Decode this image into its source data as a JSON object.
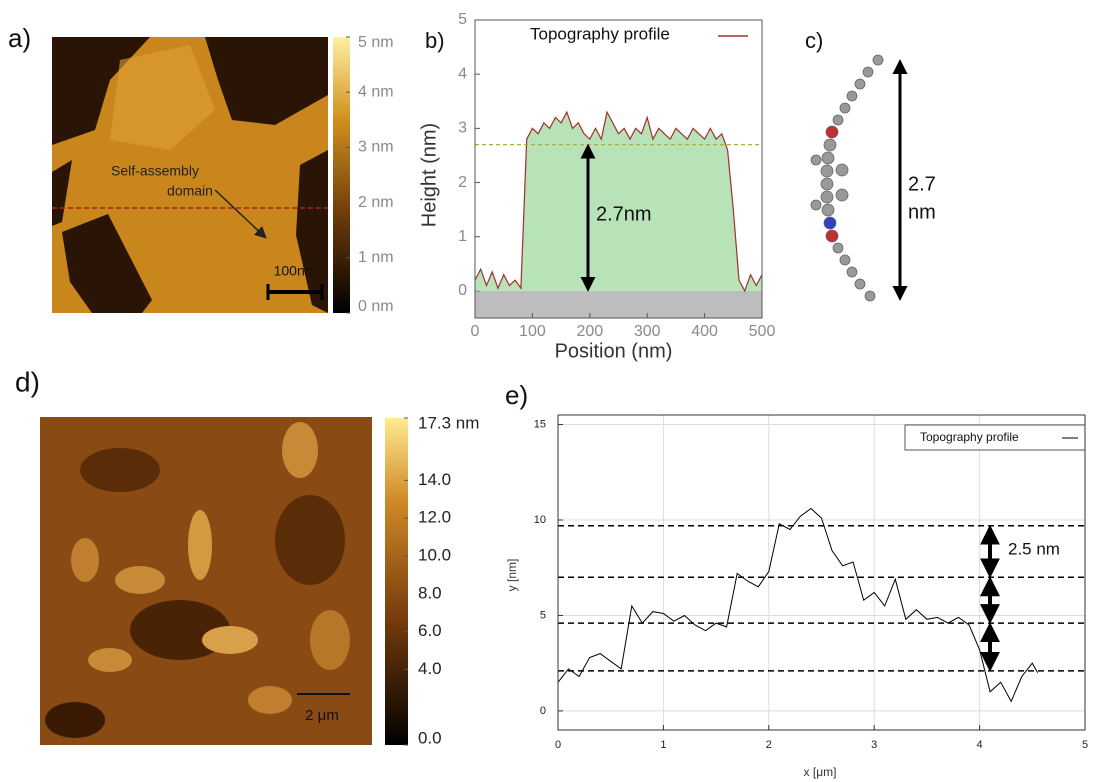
{
  "panel_labels": [
    "a)",
    "b)",
    "c)",
    "d)",
    "e)"
  ],
  "images": [
    {
      "colorbar": {
        "lim": [
          0,
          5
        ],
        "ticks": [
          {
            "value": 0,
            "label": "0 nm"
          },
          {
            "value": 1,
            "label": "1 nm"
          },
          {
            "value": 2,
            "label": "2 nm"
          },
          {
            "value": 3,
            "label": "3 nm"
          },
          {
            "value": 4,
            "label": "4 nm"
          },
          {
            "value": 5,
            "label": "5 nm"
          }
        ]
      },
      "annotation": [
        "Self-assembly",
        "domain"
      ],
      "scale_bar": "100nm"
    },
    {
      "colorbar": {
        "lim": [
          0,
          17.3
        ],
        "ticks": [
          {
            "value": 17.3,
            "label": "17.3 nm"
          },
          {
            "value": 14,
            "label": "14.0"
          },
          {
            "value": 12,
            "label": "12.0"
          },
          {
            "value": 10,
            "label": "10.0"
          },
          {
            "value": 8,
            "label": "8.0"
          },
          {
            "value": 6,
            "label": "6.0"
          },
          {
            "value": 4,
            "label": "4.0"
          },
          {
            "value": 0,
            "label": "0.0"
          }
        ]
      },
      "scale_bar": "2 μm"
    }
  ],
  "molecule": {
    "length_label": [
      "2.7",
      "nm"
    ]
  },
  "chart_data": [
    {
      "type": "line",
      "xlabel": "Position (nm)",
      "ylabel": "Height (nm)",
      "x": [
        0,
        10,
        20,
        30,
        40,
        50,
        60,
        70,
        80,
        90,
        100,
        110,
        120,
        130,
        140,
        150,
        160,
        170,
        180,
        190,
        200,
        210,
        220,
        230,
        240,
        250,
        260,
        270,
        280,
        290,
        300,
        310,
        320,
        330,
        340,
        350,
        360,
        370,
        380,
        390,
        400,
        410,
        420,
        430,
        440,
        450,
        460,
        470,
        480,
        490,
        500
      ],
      "series": [
        {
          "name": "Topography profile",
          "color": "#a0302a",
          "values": [
            0.2,
            0.4,
            0.1,
            0.35,
            0.05,
            0.3,
            0.1,
            0.2,
            0.05,
            2.8,
            3.0,
            2.9,
            3.1,
            3.0,
            3.2,
            3.1,
            3.3,
            3.0,
            3.1,
            2.9,
            2.8,
            3.0,
            2.8,
            3.3,
            3.1,
            2.9,
            3.0,
            2.8,
            3.0,
            2.9,
            3.2,
            2.8,
            3.0,
            2.9,
            2.8,
            3.0,
            2.9,
            2.8,
            3.0,
            2.9,
            2.8,
            3.0,
            2.8,
            2.9,
            2.6,
            1.5,
            0.2,
            0.0,
            0.3,
            0.1,
            0.3
          ]
        }
      ],
      "fill_color": "#b8e2b8",
      "below_zero_color": "#bdbdbd",
      "xlim": [
        0,
        500
      ],
      "ylim": [
        -0.5,
        5
      ],
      "xticks": [
        0,
        100,
        200,
        300,
        400,
        500
      ],
      "yticks": [
        0,
        1,
        2,
        3,
        4,
        5
      ],
      "reference_lines": [
        2.7
      ],
      "reference_color": "#a8b040",
      "annotation": "2.7nm"
    },
    {
      "type": "line",
      "xlabel": "x [μm]",
      "ylabel": "y [nm]",
      "x": [
        0,
        0.1,
        0.2,
        0.3,
        0.4,
        0.5,
        0.6,
        0.7,
        0.8,
        0.9,
        1.0,
        1.1,
        1.2,
        1.3,
        1.4,
        1.5,
        1.6,
        1.7,
        1.8,
        1.9,
        2.0,
        2.1,
        2.2,
        2.3,
        2.4,
        2.5,
        2.6,
        2.7,
        2.8,
        2.9,
        3.0,
        3.1,
        3.2,
        3.3,
        3.4,
        3.5,
        3.6,
        3.7,
        3.8,
        3.9,
        4.0,
        4.1,
        4.2,
        4.3,
        4.4,
        4.5,
        4.55
      ],
      "series": [
        {
          "name": "Topography profile",
          "color": "#000000",
          "values": [
            1.5,
            2.2,
            1.8,
            2.8,
            3.0,
            2.6,
            2.2,
            5.5,
            4.6,
            5.2,
            5.1,
            4.7,
            5.0,
            4.5,
            4.2,
            4.6,
            4.4,
            7.2,
            6.8,
            6.5,
            7.3,
            9.8,
            9.5,
            10.2,
            10.6,
            10.1,
            8.4,
            7.6,
            7.8,
            5.8,
            6.2,
            5.5,
            6.9,
            4.8,
            5.3,
            4.8,
            4.9,
            4.6,
            4.9,
            4.5,
            3.2,
            1.0,
            1.5,
            0.5,
            1.8,
            2.5,
            2.0
          ]
        }
      ],
      "xlim": [
        0,
        5
      ],
      "ylim": [
        -1,
        15.5
      ],
      "xticks": [
        0,
        1,
        2,
        3,
        4,
        5
      ],
      "yticks": [
        0,
        5,
        10,
        15
      ],
      "grid": true,
      "reference_lines": [
        2.1,
        4.6,
        7.0,
        9.7
      ],
      "reference_color": "#000000",
      "annotation": "2.5 nm"
    }
  ]
}
